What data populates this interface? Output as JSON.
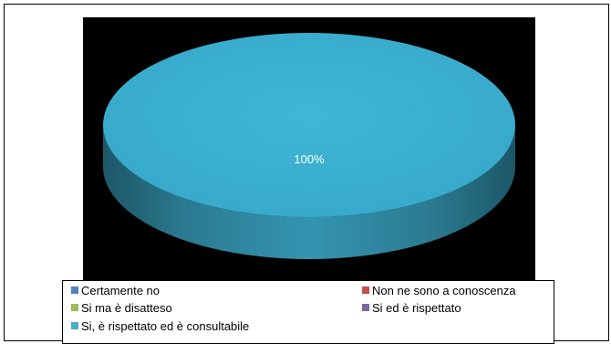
{
  "chart_data": {
    "type": "pie",
    "style": "3d",
    "categories": [
      "Certamente no",
      "Non ne sono a conoscenza",
      "Si ma è disatteso",
      "Si ed è rispettato",
      "Si, è rispettato ed è consultabile"
    ],
    "values": [
      0,
      0,
      0,
      0,
      100
    ],
    "value_unit": "%",
    "data_labels": [
      "100%"
    ],
    "colors": [
      "#4f81bd",
      "#c0504d",
      "#9bbb59",
      "#8064a2",
      "#4bacc6"
    ],
    "legend_position": "bottom",
    "plot_background": "#000000"
  }
}
